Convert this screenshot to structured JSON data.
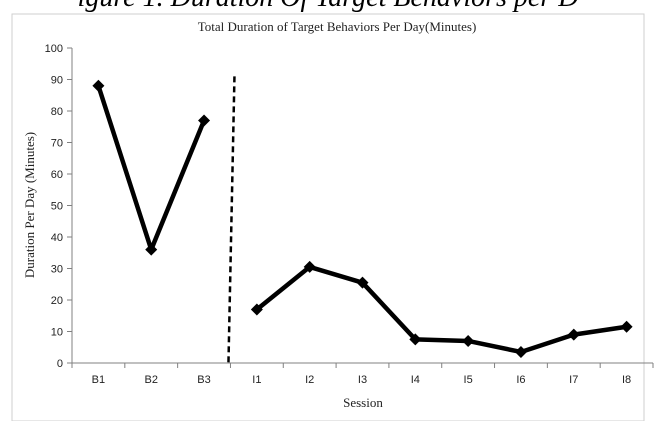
{
  "chart_data": {
    "type": "line",
    "title": "Total Duration  of Target Behaviors  Per Day(Minutes)",
    "top_caption_fragment": "igure 1. Duration Of Target Behaviors per D",
    "xlabel": "Session",
    "ylabel": "Duration  Per Day  (Minutes)",
    "ylim": [
      0,
      100
    ],
    "yticks": [
      0,
      10,
      20,
      30,
      40,
      50,
      60,
      70,
      80,
      90,
      100
    ],
    "categories": [
      "B1",
      "B2",
      "B3",
      "I1",
      "I2",
      "I3",
      "I4",
      "I5",
      "I6",
      "I7",
      "I8"
    ],
    "phase_change_between": [
      "B3",
      "I1"
    ],
    "legend": "none",
    "grid": false,
    "series": [
      {
        "phase": "baseline",
        "x": [
          "B1",
          "B2",
          "B3"
        ],
        "values": [
          88,
          36,
          77
        ]
      },
      {
        "phase": "intervention",
        "x": [
          "I1",
          "I2",
          "I3",
          "I4",
          "I5",
          "I6",
          "I7",
          "I8"
        ],
        "values": [
          17,
          30.5,
          25.5,
          7.5,
          7,
          3.5,
          9,
          11.5
        ]
      }
    ],
    "colors": {
      "line": "#000000",
      "axis": "#808080",
      "text": "#222222"
    }
  }
}
